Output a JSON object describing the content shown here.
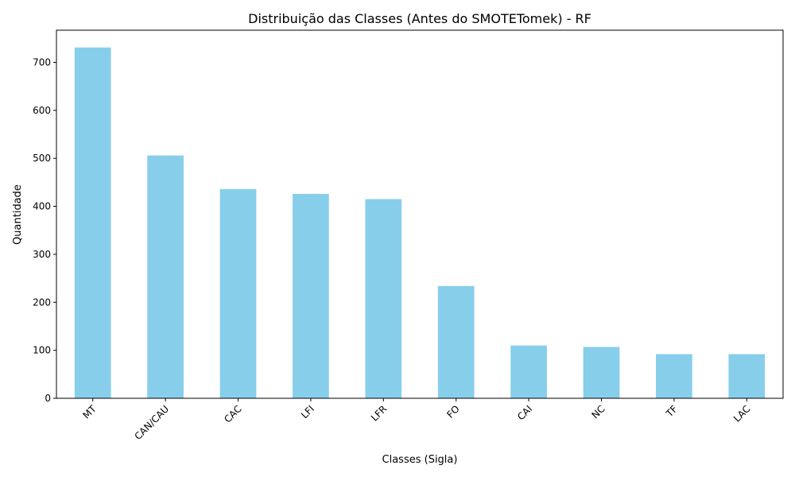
{
  "chart_data": {
    "type": "bar",
    "title": "Distribuição das Classes (Antes do SMOTETomek) - RF",
    "xlabel": "Classes (Sigla)",
    "ylabel": "Quantidade",
    "categories": [
      "MT",
      "CAN/CAU",
      "CAC",
      "LFI",
      "LFR",
      "FO",
      "CAI",
      "NC",
      "TF",
      "LAC"
    ],
    "values": [
      731,
      506,
      436,
      426,
      415,
      234,
      110,
      107,
      92,
      92
    ],
    "ylim": [
      0,
      767
    ],
    "yticks": [
      0,
      100,
      200,
      300,
      400,
      500,
      600,
      700
    ],
    "x_tick_rotation_deg": 45,
    "grid": false,
    "legend": "none",
    "colors": {
      "bar": "#87CEEB",
      "axis": "#000000"
    }
  }
}
